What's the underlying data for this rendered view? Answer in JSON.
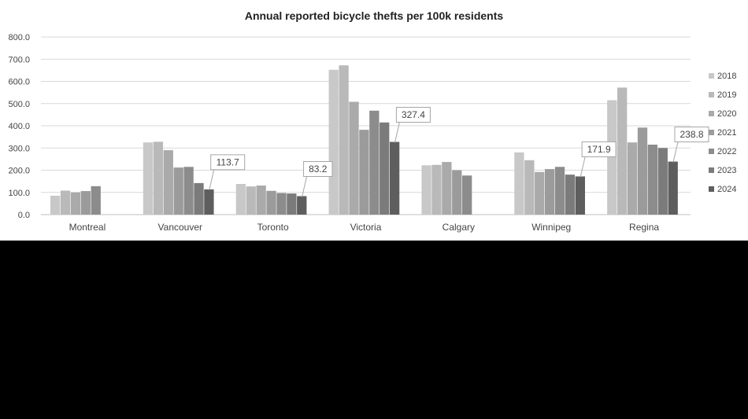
{
  "chart_data": {
    "type": "bar",
    "title": "Annual reported bicycle thefts per 100k residents",
    "xlabel": "",
    "ylabel": "",
    "ylim": [
      0,
      800
    ],
    "y_ticks": [
      "0.0",
      "100.0",
      "200.0",
      "300.0",
      "400.0",
      "500.0",
      "600.0",
      "700.0",
      "800.0"
    ],
    "grid": true,
    "legend_position": "right",
    "categories": [
      "Montreal",
      "Vancouver",
      "Toronto",
      "Victoria",
      "Calgary",
      "Winnipeg",
      "Regina"
    ],
    "series": [
      {
        "name": "2018",
        "color": "#c8c8c8",
        "values": [
          85,
          325,
          138,
          652,
          222,
          280,
          515
        ]
      },
      {
        "name": "2019",
        "color": "#b9b9b9",
        "values": [
          108,
          328,
          127,
          672,
          224,
          245,
          572
        ]
      },
      {
        "name": "2020",
        "color": "#aaaaaa",
        "values": [
          100,
          290,
          131,
          508,
          237,
          192,
          325
        ]
      },
      {
        "name": "2021",
        "color": "#9b9b9b",
        "values": [
          106,
          212,
          107,
          382,
          200,
          205,
          392
        ]
      },
      {
        "name": "2022",
        "color": "#8c8c8c",
        "values": [
          128,
          215,
          97,
          468,
          176,
          215,
          315
        ]
      },
      {
        "name": "2023",
        "color": "#7b7b7b",
        "values": [
          null,
          142,
          95,
          415,
          null,
          180,
          300
        ]
      },
      {
        "name": "2024",
        "color": "#5e5e5e",
        "values": [
          null,
          113.7,
          83.2,
          327.4,
          null,
          171.9,
          238.8
        ]
      }
    ],
    "annotations": [
      {
        "category": "Vancouver",
        "series": "2024",
        "label": "113.7"
      },
      {
        "category": "Toronto",
        "series": "2024",
        "label": "83.2"
      },
      {
        "category": "Victoria",
        "series": "2024",
        "label": "327.4"
      },
      {
        "category": "Winnipeg",
        "series": "2024",
        "label": "171.9"
      },
      {
        "category": "Regina",
        "series": "2024",
        "label": "238.8"
      }
    ]
  }
}
